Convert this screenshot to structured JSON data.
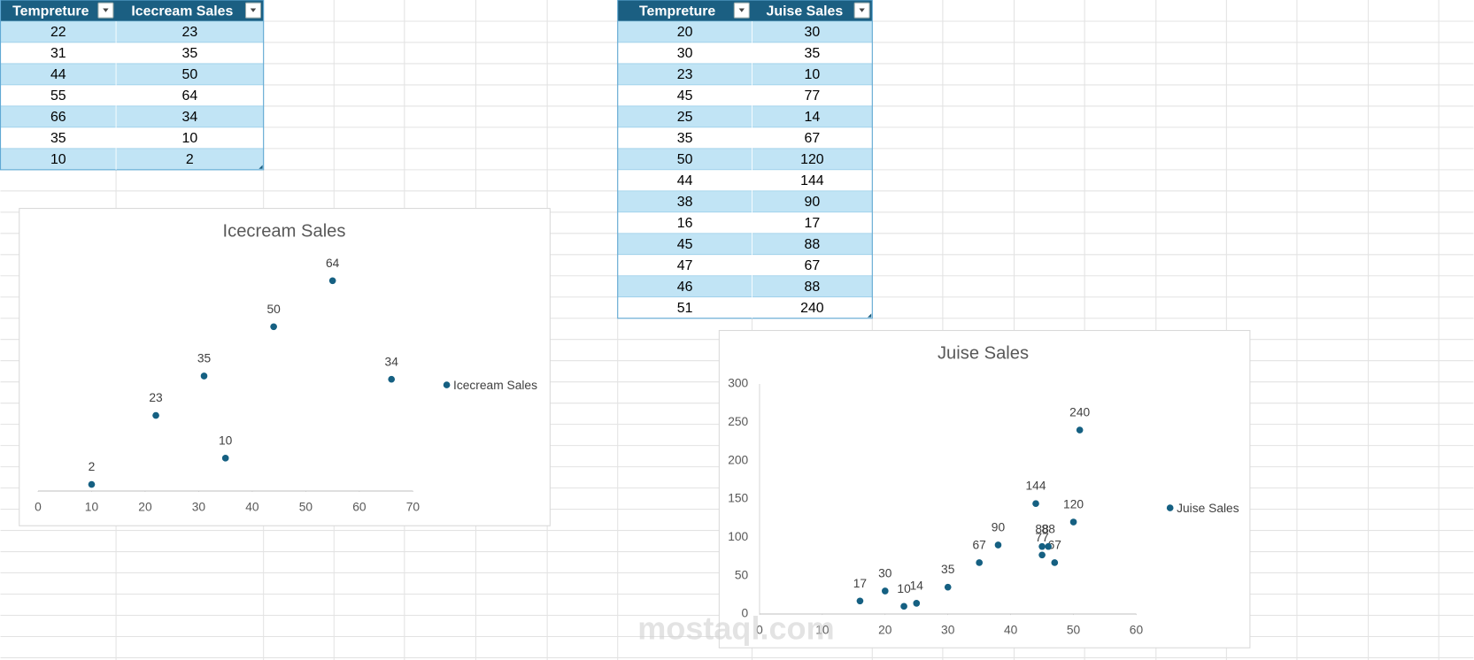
{
  "tables": [
    {
      "header": [
        "Tempreture",
        "Icecream Sales"
      ],
      "rows": [
        [
          22,
          23
        ],
        [
          31,
          35
        ],
        [
          44,
          50
        ],
        [
          55,
          64
        ],
        [
          66,
          34
        ],
        [
          35,
          10
        ],
        [
          10,
          2
        ]
      ]
    },
    {
      "header": [
        "Tempreture",
        "Juise Sales"
      ],
      "rows": [
        [
          20,
          30
        ],
        [
          30,
          35
        ],
        [
          23,
          10
        ],
        [
          45,
          77
        ],
        [
          25,
          14
        ],
        [
          35,
          67
        ],
        [
          50,
          120
        ],
        [
          44,
          144
        ],
        [
          38,
          90
        ],
        [
          16,
          17
        ],
        [
          45,
          88
        ],
        [
          47,
          67
        ],
        [
          46,
          88
        ],
        [
          51,
          240
        ]
      ]
    }
  ],
  "chart_data": [
    {
      "type": "scatter",
      "title": "Icecream Sales",
      "series": [
        {
          "name": "Icecream Sales",
          "color": "#156082",
          "x": [
            22,
            31,
            44,
            55,
            66,
            35,
            10
          ],
          "values": [
            23,
            35,
            50,
            64,
            34,
            10,
            2
          ]
        }
      ],
      "xlim": [
        0,
        70
      ],
      "xticks": [
        0,
        10,
        20,
        30,
        40,
        50,
        60,
        70
      ],
      "ylim": [
        0,
        70
      ],
      "legend": "right",
      "data_labels": true
    },
    {
      "type": "scatter",
      "title": "Juise Sales",
      "series": [
        {
          "name": "Juise Sales",
          "color": "#156082",
          "x": [
            20,
            30,
            23,
            45,
            25,
            35,
            50,
            44,
            38,
            16,
            45,
            47,
            46,
            51
          ],
          "values": [
            30,
            35,
            10,
            77,
            14,
            67,
            120,
            144,
            90,
            17,
            88,
            67,
            88,
            240
          ]
        }
      ],
      "xlim": [
        0,
        60
      ],
      "xticks": [
        0,
        10,
        20,
        30,
        40,
        50,
        60
      ],
      "ylim": [
        0,
        300
      ],
      "yticks": [
        0,
        50,
        100,
        150,
        200,
        250,
        300
      ],
      "legend": "right",
      "data_labels": true
    }
  ],
  "watermark": "mostaql.com"
}
